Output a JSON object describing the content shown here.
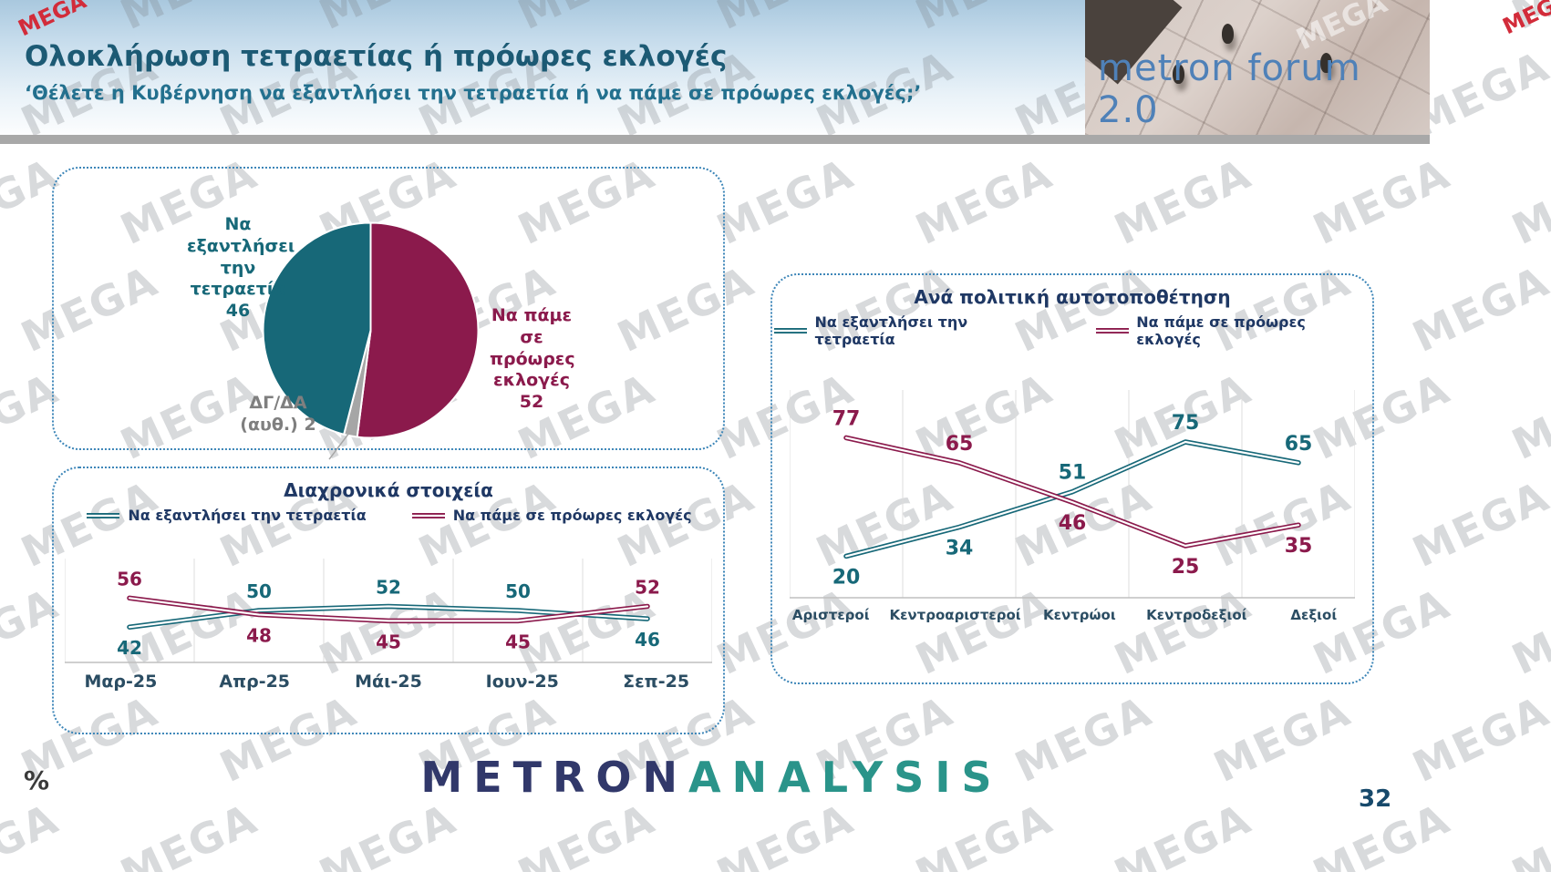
{
  "page": {
    "title": "Ολοκλήρωση τετραετίας ή πρόωρες εκλογές",
    "subtitle": "‘Θέλετε η Κυβέρνηση να εξαντλήσει την τετραετία ή να πάμε σε πρόωρες εκλογές;’",
    "page_number": "32",
    "percent_label": "%",
    "watermark_text": "MEGA",
    "channel_logo": "MEGA"
  },
  "logo": {
    "brand": "metron forum 2.0"
  },
  "footer": {
    "brand_part1": "METRON",
    "brand_part2": "ANALYSIS"
  },
  "colors": {
    "teal": "#176878",
    "maroon": "#8b1a4c",
    "gray": "#a6a6a6",
    "title_teal": "#1c5a74",
    "legend_text": "#1f3864",
    "box_border": "#3d86b8"
  },
  "chart_data": [
    {
      "type": "pie",
      "name": "overall-result",
      "slices": [
        {
          "label": "Να πάμε σε πρόωρες εκλογές",
          "value": 52,
          "color": "#8b1a4c"
        },
        {
          "label": "ΔΓ/ΔΑ (αυθ.)",
          "value": 2,
          "color": "#a6a6a6"
        },
        {
          "label": "Να εξαντλήσει την τετραετία",
          "value": 46,
          "color": "#176878"
        }
      ]
    },
    {
      "type": "line",
      "name": "trend-over-time",
      "title": "Διαχρονικά στοιχεία",
      "categories": [
        "Μαρ-25",
        "Απρ-25",
        "Μάι-25",
        "Ιουν-25",
        "Σεπ-25"
      ],
      "series": [
        {
          "name": "Να εξαντλήσει την τετραετία",
          "color": "#176878",
          "values": [
            42,
            50,
            52,
            50,
            46
          ]
        },
        {
          "name": "Να πάμε σε πρόωρες εκλογές",
          "color": "#8b1a4c",
          "values": [
            56,
            48,
            45,
            45,
            52
          ]
        }
      ],
      "ylim": [
        25,
        75
      ],
      "legend_position": "top",
      "grid": "vertical"
    },
    {
      "type": "line",
      "name": "by-political-self-placement",
      "title": "Ανά πολιτική αυτοτοποθέτηση",
      "categories": [
        "Αριστεροί",
        "Κεντροαριστεροί",
        "Κεντρώοι",
        "Κεντροδεξιοί",
        "Δεξιοί"
      ],
      "series": [
        {
          "name": "Να εξαντλήσει την τετραετία",
          "color": "#176878",
          "values": [
            20,
            34,
            51,
            75,
            65
          ]
        },
        {
          "name": "Να πάμε σε πρόωρες εκλογές",
          "color": "#8b1a4c",
          "values": [
            77,
            65,
            46,
            25,
            35
          ]
        }
      ],
      "ylim": [
        0,
        100
      ],
      "legend_position": "top",
      "grid": "vertical"
    }
  ]
}
